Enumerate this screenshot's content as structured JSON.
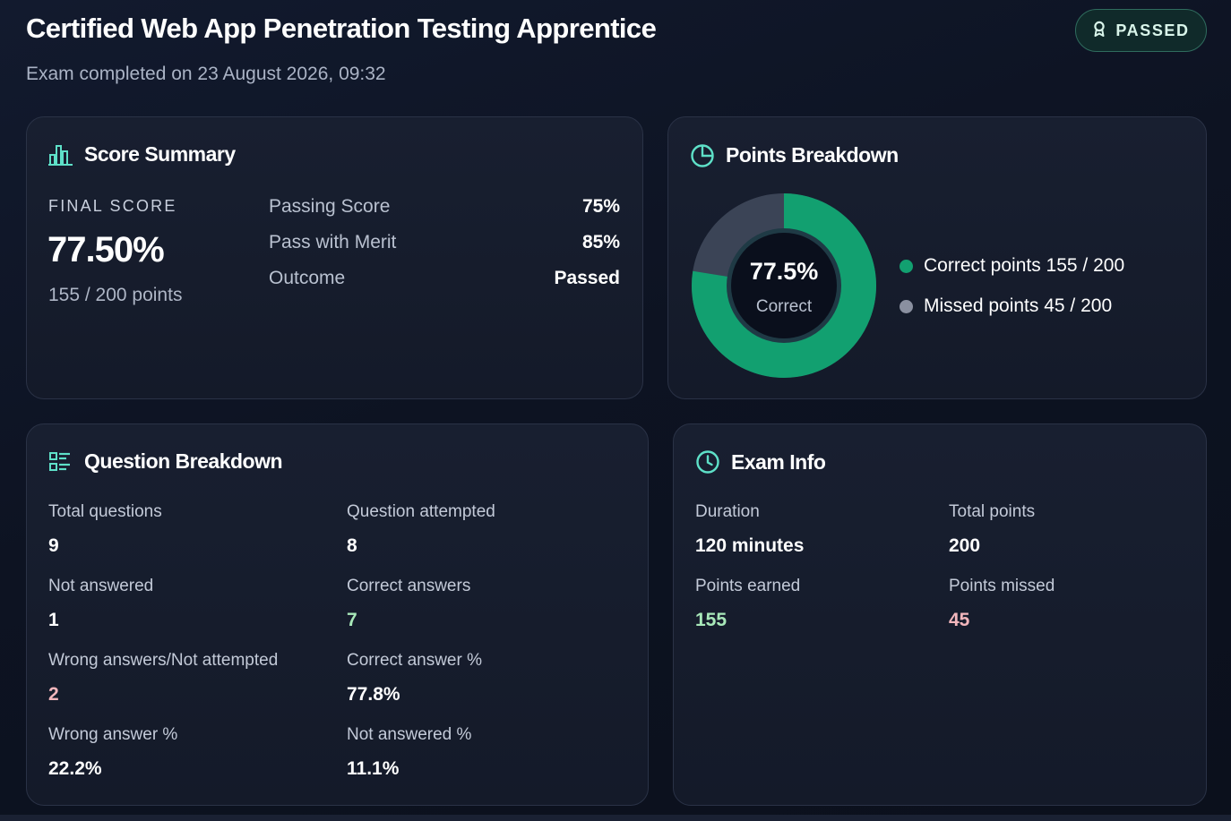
{
  "header": {
    "title": "Certified Web App Penetration Testing Apprentice",
    "subtitle": "Exam completed on 23 August 2026, 09:32",
    "badge": "PASSED"
  },
  "score_summary": {
    "heading": "Score Summary",
    "final_label": "FINAL SCORE",
    "final_value": "77.50%",
    "points": "155 / 200 points",
    "rows": [
      {
        "label": "Passing Score",
        "value": "75%"
      },
      {
        "label": "Pass with Merit",
        "value": "85%"
      },
      {
        "label": "Outcome",
        "value": "Passed"
      }
    ]
  },
  "points_breakdown": {
    "heading": "Points Breakdown",
    "center_value": "77.5%",
    "center_label": "Correct",
    "correct_fraction": 0.775,
    "legend": [
      {
        "label": "Correct points 155 / 200",
        "color": "#12a070"
      },
      {
        "label": "Missed points 45 / 200",
        "color": "#8a90a0"
      }
    ],
    "missed_color": "#3b4456"
  },
  "question_breakdown": {
    "heading": "Question Breakdown",
    "stats": [
      {
        "label": "Total questions",
        "value": "9"
      },
      {
        "label": "Question attempted",
        "value": "8"
      },
      {
        "label": "Not answered",
        "value": "1"
      },
      {
        "label": "Correct answers",
        "value": "7"
      },
      {
        "label": "Wrong answers/Not attempted",
        "value": "2"
      },
      {
        "label": "Correct answer %",
        "value": "77.8%"
      },
      {
        "label": "Wrong answer %",
        "value": "22.2%"
      },
      {
        "label": "Not answered %",
        "value": "11.1%"
      }
    ]
  },
  "exam_info": {
    "heading": "Exam Info",
    "stats": [
      {
        "label": "Duration",
        "value": "120 minutes"
      },
      {
        "label": "Total points",
        "value": "200"
      },
      {
        "label": "Points earned",
        "value": "155"
      },
      {
        "label": "Points missed",
        "value": "45"
      }
    ]
  },
  "colors": {
    "accent": "#5ee0c8",
    "correct": "#12a070",
    "positive_text": "#a8e8b9",
    "negative_text": "#f2b6bc"
  }
}
